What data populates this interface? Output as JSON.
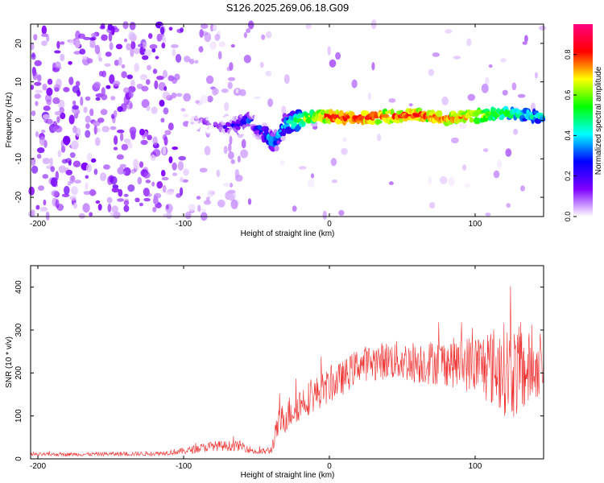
{
  "title": "S126.2025.269.06.18.G09",
  "chart_data": [
    {
      "type": "heatmap",
      "title": "S126.2025.269.06.18.G09",
      "xlabel": "Height of straight line (km)",
      "ylabel": "Frequency (Hz)",
      "xlim": [
        -205,
        147
      ],
      "ylim": [
        -25,
        25
      ],
      "xticks": [
        -200,
        -100,
        0,
        100
      ],
      "xtick_labels": [
        "-200",
        "-100",
        "0",
        "100"
      ],
      "yticks": [
        -20,
        -10,
        0,
        10,
        20
      ],
      "ytick_labels": [
        "-20",
        "-10",
        "0",
        "10",
        "20"
      ],
      "colorbar": {
        "label": "Normalized spectral amplitude",
        "range": [
          0,
          0.95
        ],
        "ticks": [
          0.0,
          0.2,
          0.4,
          0.6,
          0.8
        ],
        "tick_labels": [
          "0.0",
          "0.2",
          "0.4",
          "0.6",
          "0.8"
        ],
        "colormap": [
          "#ffffff",
          "#8000ff",
          "#0000ff",
          "#00ffff",
          "#00ff00",
          "#ffff00",
          "#ff0000",
          "#ff0080"
        ]
      },
      "ridge": {
        "description_x_km": [
          -90,
          -70,
          -55,
          -45,
          -38,
          -30,
          -20,
          -10,
          0,
          20,
          40,
          60,
          80,
          100,
          120,
          145
        ],
        "frequency_hz": [
          0,
          -2,
          0,
          -3,
          -6,
          -1,
          0,
          1,
          1,
          0.5,
          1,
          1.5,
          0.5,
          1,
          2,
          1
        ],
        "peak_amplitude": [
          0.15,
          0.25,
          0.35,
          0.4,
          0.45,
          0.5,
          0.65,
          0.75,
          0.9,
          0.9,
          0.85,
          0.85,
          0.85,
          0.8,
          0.6,
          0.5
        ]
      }
    },
    {
      "type": "line",
      "xlabel": "Height of straight line (km)",
      "ylabel": "SNR (10 * v/v)",
      "xlim": [
        -205,
        147
      ],
      "ylim": [
        0,
        450
      ],
      "xticks": [
        -200,
        -100,
        0,
        100
      ],
      "xtick_labels": [
        "-200",
        "-100",
        "0",
        "100"
      ],
      "yticks": [
        0,
        100,
        200,
        300,
        400
      ],
      "ytick_labels": [
        "0",
        "100",
        "200",
        "300",
        "400"
      ],
      "series": [
        {
          "name": "SNR",
          "color": "#ee3030",
          "envelope_x_km": [
            -205,
            -120,
            -100,
            -80,
            -60,
            -50,
            -40,
            -35,
            -30,
            -20,
            -10,
            0,
            10,
            20,
            40,
            60,
            80,
            100,
            110,
            120,
            130,
            140,
            147
          ],
          "mean_snr": [
            10,
            12,
            18,
            30,
            30,
            15,
            20,
            80,
            100,
            130,
            150,
            170,
            190,
            220,
            230,
            225,
            225,
            220,
            215,
            210,
            200,
            210,
            215
          ],
          "spread": [
            4,
            5,
            8,
            12,
            12,
            6,
            10,
            35,
            40,
            40,
            40,
            40,
            40,
            40,
            45,
            50,
            55,
            70,
            90,
            110,
            110,
            80,
            60
          ]
        }
      ]
    }
  ]
}
